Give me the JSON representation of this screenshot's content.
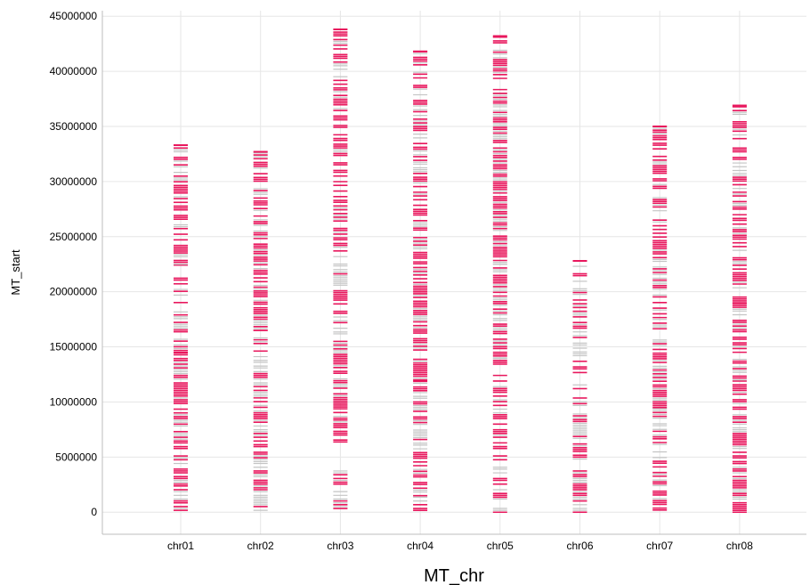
{
  "chart_data": {
    "type": "scatter",
    "xlabel": "MT_chr",
    "ylabel": "MT_start",
    "ylim": [
      -2000000,
      45500000
    ],
    "y_ticks": [
      {
        "value": 0,
        "label": "0"
      },
      {
        "value": 5000000,
        "label": "5000000"
      },
      {
        "value": 10000000,
        "label": "10000000"
      },
      {
        "value": 15000000,
        "label": "15000000"
      },
      {
        "value": 20000000,
        "label": "20000000"
      },
      {
        "value": 25000000,
        "label": "25000000"
      },
      {
        "value": 30000000,
        "label": "30000000"
      },
      {
        "value": 35000000,
        "label": "35000000"
      },
      {
        "value": 40000000,
        "label": "40000000"
      },
      {
        "value": 45000000,
        "label": "45000000"
      }
    ],
    "grid": true,
    "legend": "none",
    "colors": {
      "primary": "#e8175d",
      "secondary": "#c4c4c4",
      "grid": "#e6e6e6",
      "axis": "#bdbdbd"
    },
    "categories": [
      "chr01",
      "chr02",
      "chr03",
      "chr04",
      "chr05",
      "chr06",
      "chr07",
      "chr08"
    ],
    "series": [
      {
        "category": "chr01",
        "max_start": 33300000,
        "segments": [
          {
            "from": 0,
            "to": 14500000,
            "density": 0.78
          },
          {
            "from": 14500000,
            "to": 18000000,
            "density": 0.55
          },
          {
            "from": 18000000,
            "to": 22500000,
            "density": 0.25
          },
          {
            "from": 22500000,
            "to": 33300000,
            "density": 0.72
          }
        ]
      },
      {
        "category": "chr02",
        "max_start": 32700000,
        "segments": [
          {
            "from": 0,
            "to": 16500000,
            "density": 0.7
          },
          {
            "from": 16500000,
            "to": 28500000,
            "density": 0.75
          },
          {
            "from": 28500000,
            "to": 32700000,
            "density": 0.55
          }
        ]
      },
      {
        "category": "chr03",
        "max_start": 43800000,
        "segments": [
          {
            "from": 0,
            "to": 4000000,
            "density": 0.65
          },
          {
            "from": 4000000,
            "to": 7000000,
            "density": 0.2
          },
          {
            "from": 7000000,
            "to": 22000000,
            "density": 0.7
          },
          {
            "from": 22000000,
            "to": 40500000,
            "density": 0.55
          },
          {
            "from": 40500000,
            "to": 43800000,
            "density": 0.8
          }
        ]
      },
      {
        "category": "chr04",
        "max_start": 41800000,
        "segments": [
          {
            "from": 0,
            "to": 1500000,
            "density": 0.5
          },
          {
            "from": 1500000,
            "to": 12000000,
            "density": 0.75
          },
          {
            "from": 12000000,
            "to": 27500000,
            "density": 0.82
          },
          {
            "from": 27500000,
            "to": 41800000,
            "density": 0.55
          }
        ]
      },
      {
        "category": "chr05",
        "max_start": 43200000,
        "segments": [
          {
            "from": 0,
            "to": 14000000,
            "density": 0.6
          },
          {
            "from": 14000000,
            "to": 22500000,
            "density": 0.7
          },
          {
            "from": 22500000,
            "to": 38000000,
            "density": 0.82
          },
          {
            "from": 38000000,
            "to": 43200000,
            "density": 0.6
          }
        ]
      },
      {
        "category": "chr06",
        "max_start": 22800000,
        "segments": [
          {
            "from": 0,
            "to": 3800000,
            "density": 0.85
          },
          {
            "from": 3800000,
            "to": 5000000,
            "density": 0.25
          },
          {
            "from": 5000000,
            "to": 9000000,
            "density": 0.75
          },
          {
            "from": 9000000,
            "to": 12500000,
            "density": 0.25
          },
          {
            "from": 12500000,
            "to": 15000000,
            "density": 0.65
          },
          {
            "from": 15000000,
            "to": 22800000,
            "density": 0.7
          }
        ]
      },
      {
        "category": "chr07",
        "max_start": 35000000,
        "segments": [
          {
            "from": 200000,
            "to": 7000000,
            "density": 0.6
          },
          {
            "from": 7000000,
            "to": 9500000,
            "density": 0.25
          },
          {
            "from": 9500000,
            "to": 35000000,
            "density": 0.72
          }
        ]
      },
      {
        "category": "chr08",
        "max_start": 36900000,
        "segments": [
          {
            "from": 0,
            "to": 12000000,
            "density": 0.8
          },
          {
            "from": 12000000,
            "to": 14000000,
            "density": 0.55
          },
          {
            "from": 14000000,
            "to": 19000000,
            "density": 0.75
          },
          {
            "from": 19000000,
            "to": 31000000,
            "density": 0.7
          },
          {
            "from": 31000000,
            "to": 36900000,
            "density": 0.6
          }
        ]
      }
    ]
  }
}
